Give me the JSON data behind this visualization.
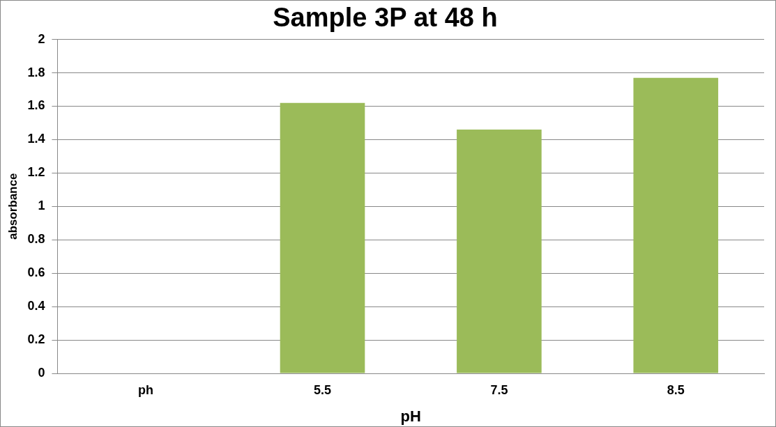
{
  "chart_data": {
    "type": "bar",
    "title": "Sample 3P at 48 h",
    "xlabel": "pH",
    "ylabel": "absorbance",
    "categories": [
      "ph",
      "5.5",
      "7.5",
      "8.5"
    ],
    "series": [
      {
        "color": "#9bbb59",
        "values": [
          null,
          1.62,
          1.46,
          1.77
        ]
      }
    ],
    "ylim": [
      0,
      2
    ],
    "yticks": [
      0,
      0.2,
      0.4,
      0.6,
      0.8,
      1,
      1.2,
      1.4,
      1.6,
      1.8,
      2
    ],
    "grid": "y",
    "legend": false
  }
}
